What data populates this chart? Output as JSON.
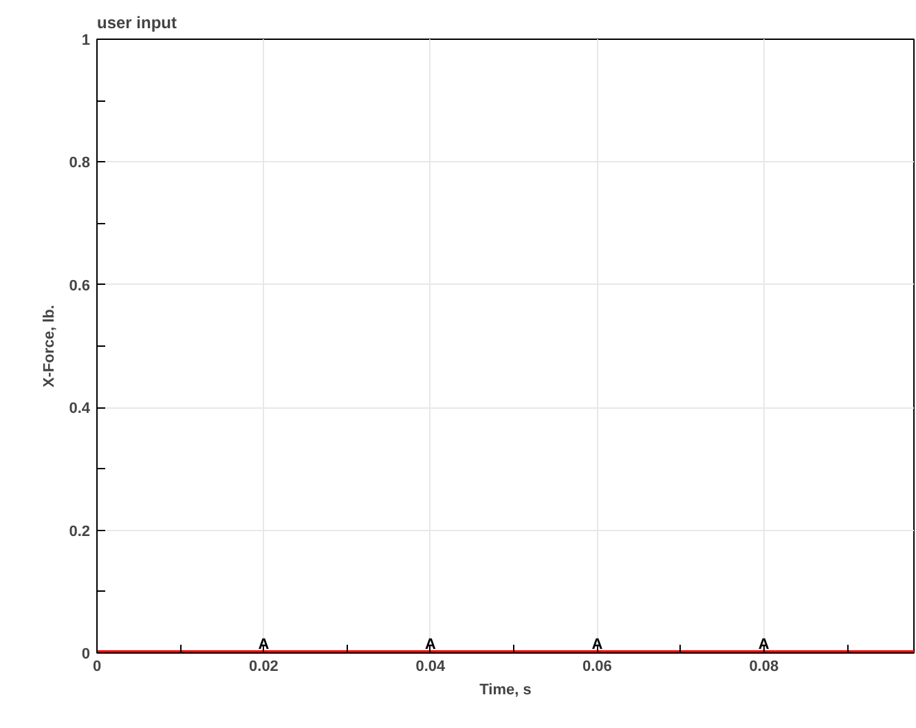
{
  "chart_data": {
    "type": "line",
    "title": "user input",
    "xlabel": "Time, s",
    "ylabel": "X-Force, lb.",
    "x": [
      0,
      0.02,
      0.04,
      0.06,
      0.08,
      0.098
    ],
    "series": [
      {
        "name": "A",
        "color": "#ff0000",
        "values": [
          0,
          0,
          0,
          0,
          0,
          0
        ]
      }
    ],
    "xlim": [
      0,
      0.098
    ],
    "ylim": [
      0,
      1
    ],
    "xticks": [
      0,
      {
        "value": 0.01,
        "label": null
      },
      0.02,
      {
        "value": 0.03,
        "label": null
      },
      0.04,
      {
        "value": 0.05,
        "label": null
      },
      0.06,
      {
        "value": 0.07,
        "label": null
      },
      0.08,
      {
        "value": 0.09,
        "label": null
      }
    ],
    "yticks": [
      0,
      {
        "value": 0.1,
        "label": null
      },
      0.2,
      {
        "value": 0.3,
        "label": null
      },
      0.4,
      {
        "value": 0.5,
        "label": null
      },
      0.6,
      {
        "value": 0.7,
        "label": null
      },
      0.8,
      {
        "value": 0.9,
        "label": null
      },
      1
    ],
    "grid": true,
    "legend": false,
    "marker": "none",
    "line_style": "solid"
  }
}
